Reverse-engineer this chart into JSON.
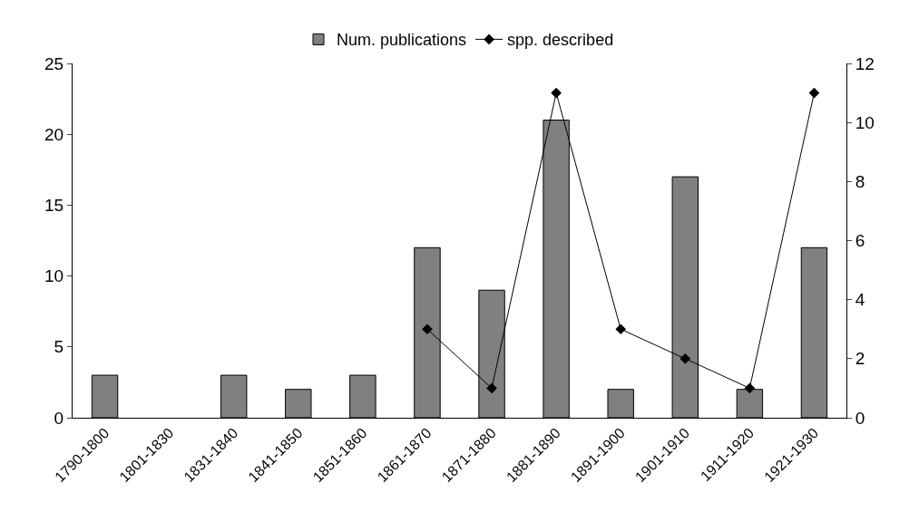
{
  "chart_data": {
    "type": "bar",
    "categories": [
      "1790-1800",
      "1801-1830",
      "1831-1840",
      "1841-1850",
      "1851-1860",
      "1861-1870",
      "1871-1880",
      "1881-1890",
      "1891-1900",
      "1901-1910",
      "1911-1920",
      "1921-1930"
    ],
    "series": [
      {
        "name": "Num. publications",
        "color": "#808080",
        "values": [
          3,
          0,
          3,
          2,
          3,
          12,
          9,
          21,
          2,
          17,
          2,
          12
        ]
      },
      {
        "name": "spp. described",
        "type": "line",
        "axis": "y2",
        "color": "#000000",
        "values": [
          null,
          null,
          null,
          null,
          null,
          3,
          1,
          11,
          3,
          2,
          1,
          11
        ]
      }
    ],
    "ylim": [
      0,
      25
    ],
    "yticks": [
      0,
      5,
      10,
      15,
      20,
      25
    ],
    "y2lim": [
      0,
      12
    ],
    "y2ticks": [
      0,
      2,
      4,
      6,
      8,
      10,
      12
    ],
    "grid": false,
    "legend": "top",
    "marker": "diamond",
    "line_style": "solid"
  }
}
